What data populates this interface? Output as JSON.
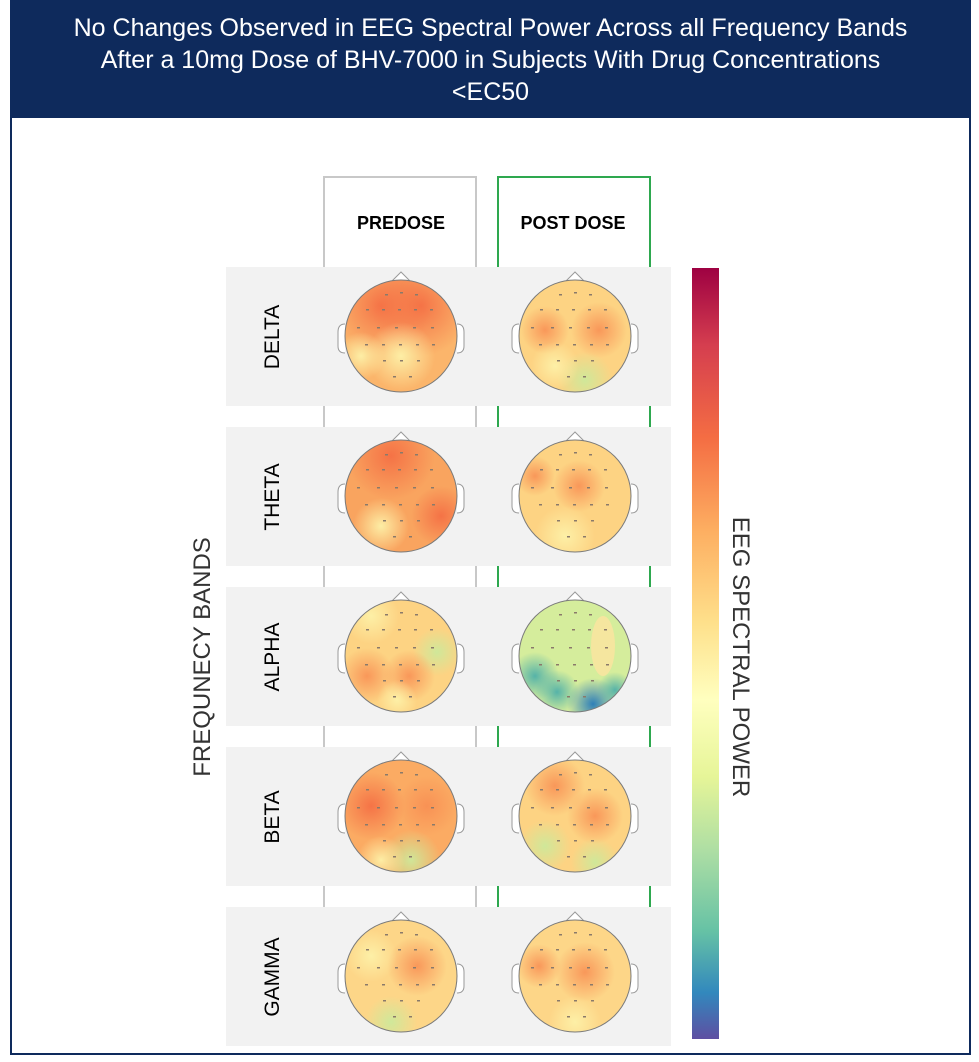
{
  "title": "No Changes Observed in EEG Spectral Power Across all Frequency Bands After a 10mg Dose of BHV-7000 in Subjects With Drug Concentrations <EC50",
  "columns": [
    "PREDOSE",
    "POST DOSE"
  ],
  "row_axis_label": "FREQUNECY BANDS",
  "colorbar_label": "EEG SPECTRAL POWER",
  "bands": [
    "DELTA",
    "THETA",
    "ALPHA",
    "BETA",
    "GAMMA"
  ],
  "colors": {
    "banner": "#0e2a5c",
    "predose_outline": "#c8c8c8",
    "postdose_outline": "#2ea84f",
    "row_band": "#f2f2f2",
    "colorbar_top": "#9e0142",
    "colorbar_bottom": "#5e4fa2"
  }
}
